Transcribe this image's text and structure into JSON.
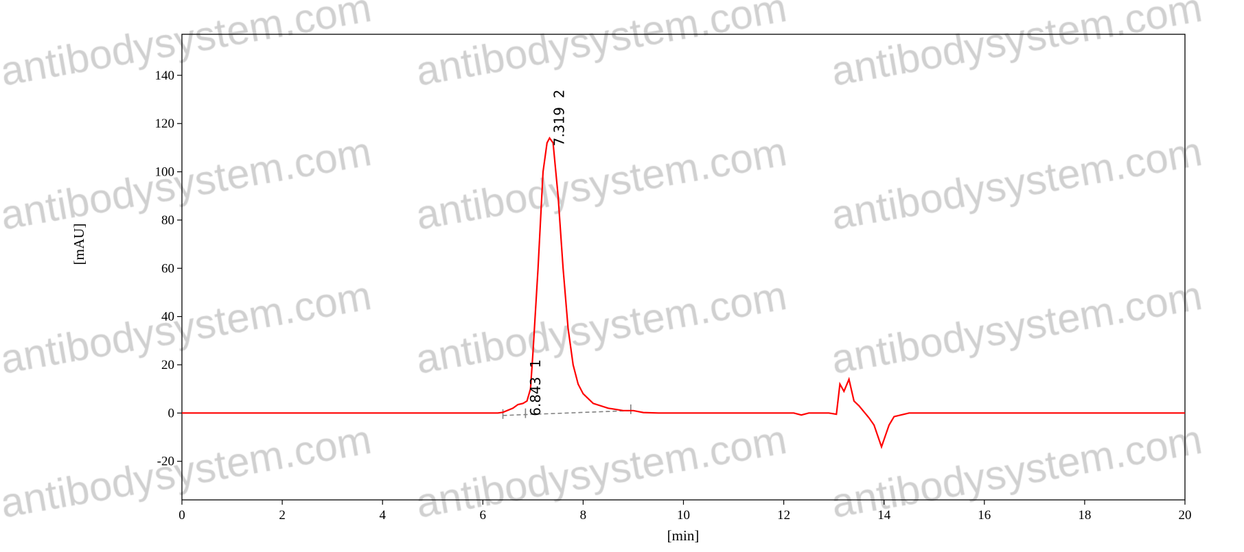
{
  "watermark": "antibodysystem.com",
  "chart_data": {
    "type": "line",
    "title": "",
    "xlabel": "[min]",
    "ylabel": "[mAU]",
    "xlim": [
      0,
      20
    ],
    "ylim": [
      -36,
      157
    ],
    "xticks": [
      0,
      2,
      4,
      6,
      8,
      10,
      12,
      14,
      16,
      18,
      20
    ],
    "yticks": [
      -20,
      0,
      20,
      40,
      60,
      80,
      100,
      120,
      140
    ],
    "grid": false,
    "line_color": "#ff0000",
    "baseline_color": "#808080",
    "series": [
      {
        "x": [
          0,
          6.3,
          6.4,
          6.6,
          6.7,
          6.8,
          6.88,
          6.95,
          7.0,
          7.1,
          7.2,
          7.28,
          7.33,
          7.4,
          7.5,
          7.6,
          7.7,
          7.8,
          7.9,
          8.0,
          8.2,
          8.5,
          8.8,
          9.0,
          9.2,
          9.5,
          12.2,
          12.35,
          12.5,
          12.9,
          13.05,
          13.12,
          13.2,
          13.3,
          13.4,
          13.5,
          13.62,
          13.7,
          13.8,
          13.95,
          14.1,
          14.2,
          14.4,
          14.5,
          20
        ],
        "y": [
          0,
          0,
          0.3,
          2,
          3.5,
          4,
          5,
          10,
          25,
          60,
          100,
          112,
          114,
          112,
          90,
          60,
          35,
          20,
          12,
          8,
          4,
          2,
          1,
          1,
          0.2,
          0,
          0,
          -0.8,
          0,
          0,
          -0.5,
          12,
          9,
          14,
          5,
          3,
          0,
          -2,
          -5,
          -14,
          -5,
          -1.5,
          -0.5,
          0,
          0
        ]
      }
    ],
    "integration_baseline": {
      "x": [
        6.4,
        8.95
      ],
      "y": [
        -1,
        1
      ],
      "markers": [
        6.4,
        6.85,
        8.95
      ]
    },
    "peaks": [
      {
        "label": "6.843  1",
        "time": 6.843,
        "height": 5
      },
      {
        "label": "7.319  2",
        "time": 7.319,
        "height": 114
      }
    ]
  }
}
